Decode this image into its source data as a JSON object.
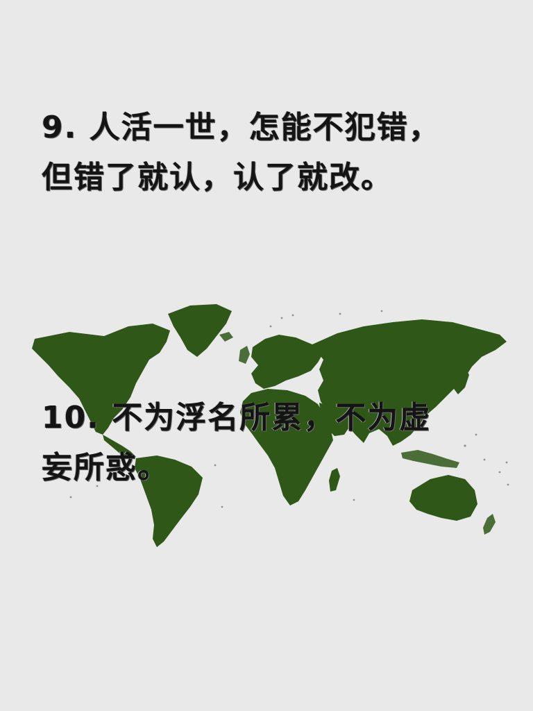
{
  "quotes": [
    {
      "text": "9. 人活一世，怎能不犯错，但错了就认，认了就改。"
    },
    {
      "text": "10. 不为浮名所累，不为虚妄所惑。"
    }
  ],
  "map": {
    "icon": "world-map-icon",
    "land_color": "#2f5718",
    "background_color": "#e9e9e9"
  }
}
